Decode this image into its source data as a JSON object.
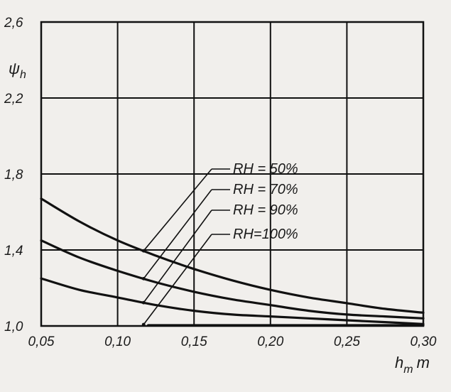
{
  "chart_data": {
    "type": "line",
    "title": "",
    "xlabel": "h_m m",
    "xlabel_main": "h",
    "xlabel_sub": "m",
    "xlabel_unit": "m",
    "ylabel": "ψh",
    "ylabel_main": "ψ",
    "ylabel_sub": "h",
    "xlim": [
      0.05,
      0.3
    ],
    "ylim": [
      1.0,
      2.6
    ],
    "x_ticks": [
      0.05,
      0.1,
      0.15,
      0.2,
      0.25,
      0.3
    ],
    "x_tick_labels": [
      "0,05",
      "0,10",
      "0,15",
      "0,20",
      "0,25",
      "0,30"
    ],
    "y_ticks": [
      1.0,
      1.4,
      1.8,
      2.2,
      2.6
    ],
    "y_tick_labels": [
      "1,0",
      "1,4",
      "1,8",
      "2,2",
      "2,6"
    ],
    "grid": true,
    "x": [
      0.05,
      0.075,
      0.1,
      0.125,
      0.15,
      0.175,
      0.2,
      0.225,
      0.25,
      0.275,
      0.3
    ],
    "series": [
      {
        "name": "RH = 50%",
        "label": "RH = 50%",
        "values": [
          1.67,
          1.55,
          1.45,
          1.37,
          1.3,
          1.24,
          1.19,
          1.15,
          1.12,
          1.09,
          1.07
        ]
      },
      {
        "name": "RH = 70%",
        "label": "RH = 70%",
        "values": [
          1.45,
          1.36,
          1.29,
          1.23,
          1.18,
          1.14,
          1.11,
          1.08,
          1.06,
          1.05,
          1.04
        ]
      },
      {
        "name": "RH = 90%",
        "label": "RH = 90%",
        "values": [
          1.25,
          1.19,
          1.15,
          1.11,
          1.08,
          1.06,
          1.05,
          1.04,
          1.03,
          1.02,
          1.01
        ]
      },
      {
        "name": "RH = 100%",
        "label": "RH=100%",
        "values": [
          1.0,
          1.0,
          1.0,
          1.0,
          1.0,
          1.0,
          1.0,
          1.0,
          1.0,
          1.0,
          1.0
        ]
      }
    ],
    "legend_placement": "center-right",
    "annotation_x": 0.117,
    "annotations": [
      "RH = 50%",
      "RH = 70%",
      "RH = 90%",
      "RH=100%"
    ]
  }
}
